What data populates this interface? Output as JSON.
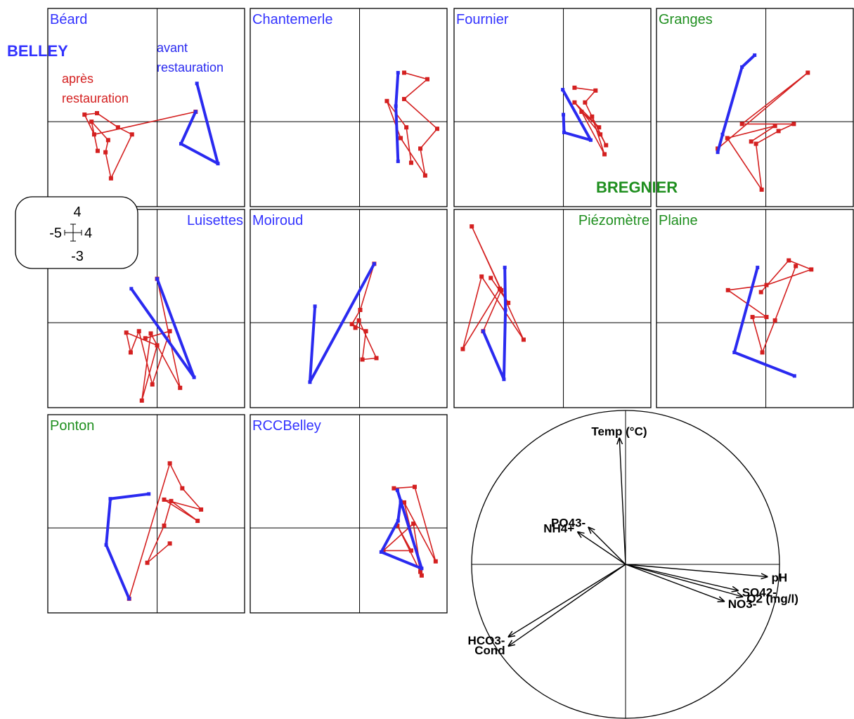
{
  "chart_data": [
    {
      "type": "trajectories",
      "xlim": [
        -5,
        4
      ],
      "ylim": [
        -3,
        4
      ],
      "series": [
        {
          "name": "avant restauration",
          "color": "#2a2af0"
        },
        {
          "name": "après restauration",
          "color": "#d42020"
        }
      ],
      "groups": [
        {
          "name": "BELLEY",
          "color": "#3333ff"
        },
        {
          "name": "BREGNIER",
          "color": "#1f8f1f"
        }
      ],
      "panels": [
        {
          "title": "Béard",
          "group": "BELLEY",
          "tracks": [
            {
              "x": [
                1.82,
                2.78,
                1.09,
                1.76
              ],
              "y": [
                1.35,
                -1.48,
                -0.78,
                0.35
              ]
            },
            {
              "x": [
                1.76,
                -2.88,
                -3.32,
                -2.75,
                -1.79,
                -1.15,
                -2.11,
                -2.36,
                -2.24,
                -3.0,
                -2.72
              ],
              "y": [
                0.35,
                -0.45,
                0.25,
                0.3,
                -0.2,
                -0.45,
                -2.0,
                -1.08,
                -0.65,
                0,
                -1.03
              ]
            }
          ]
        },
        {
          "title": "Chantemerle",
          "group": "BELLEY",
          "tracks": [
            {
              "x": [
                1.76,
                1.66,
                1.76
              ],
              "y": [
                1.73,
                0.55,
                -1.4
              ]
            },
            {
              "x": [
                2.04,
                3.1,
                2.04,
                3.55,
                2.78,
                3.0,
                1.88,
                1.25,
                2.14,
                2.36
              ],
              "y": [
                1.73,
                1.5,
                0.8,
                -0.25,
                -0.95,
                -1.9,
                -0.58,
                0.73,
                -0.2,
                -1.45
              ]
            }
          ]
        },
        {
          "title": "Fournier",
          "group": "BELLEY",
          "tracks": [
            {
              "x": [
                -0.03,
                1.25,
                0.03,
                0
              ],
              "y": [
                1.13,
                -0.65,
                -0.38,
                0.25
              ]
            },
            {
              "x": [
                0.51,
                1.47,
                0.99,
                1.95,
                1.69,
                0.51,
                1.63,
                0.83,
                1.88,
                1.31
              ],
              "y": [
                1.2,
                1.1,
                0.68,
                -0.83,
                -0.45,
                0.68,
                -0.2,
                0.35,
                -1.15,
                0.18
              ]
            }
          ]
        },
        {
          "title": "Granges",
          "group": "BREGNIER",
          "tracks": [
            {
              "x": [
                -0.51,
                -1.09,
                -1.98,
                -2.2
              ],
              "y": [
                2.35,
                1.93,
                -0.45,
                -1.08
              ]
            },
            {
              "x": [
                -2.2,
                1.92,
                -1.09,
                1.28,
                0.58,
                -0.45,
                -0.19,
                -1.76,
                0.42,
                -0.67
              ],
              "y": [
                -0.95,
                1.73,
                -0.08,
                -0.08,
                -0.33,
                -0.78,
                -2.4,
                -0.58,
                -0.15,
                -0.7
              ]
            }
          ]
        },
        {
          "title": "Luisettes",
          "group": "BELLEY",
          "tracks": [
            {
              "x": [
                -1.18,
                1.69,
                0
              ],
              "y": [
                1.2,
                -1.93,
                1.55
              ]
            },
            {
              "x": [
                0,
                1.05,
                -0.29,
                -0.7,
                0,
                -1.41,
                -1.21,
                -0.83,
                -0.22,
                0.58,
                -0.54
              ],
              "y": [
                1.55,
                -2.3,
                -0.38,
                -2.75,
                -0.8,
                -0.35,
                -1.05,
                -0.3,
                -2.18,
                -0.3,
                -0.55
              ]
            }
          ]
        },
        {
          "title": "Moiroud",
          "group": "BELLEY",
          "tracks": [
            {
              "x": [
                -2.04,
                -2.27,
                0.67
              ],
              "y": [
                0.58,
                -2.1,
                2.08
              ]
            },
            {
              "x": [
                0.67,
                0.03,
                -0.35,
                0.29,
                0.13,
                0.77,
                -0.03,
                -0.19
              ],
              "y": [
                2.08,
                0.45,
                -0.05,
                -0.3,
                -1.3,
                -1.25,
                0.08,
                -0.18
              ]
            }
          ]
        },
        {
          "title": "Piézomètre",
          "group": "BREGNIER",
          "tracks": [
            {
              "x": [
                -2.68,
                -2.65,
                -2.72,
                -3.67
              ],
              "y": [
                1.95,
                0.45,
                -2.0,
                -0.3
              ]
            },
            {
              "x": [
                -3.67,
                -2.84,
                -4.19,
                -1.82,
                -3.74,
                -4.6,
                -2.91,
                -2.52,
                -3.32
              ],
              "y": [
                -0.3,
                1.15,
                3.4,
                -0.6,
                1.63,
                -0.93,
                1.2,
                0.7,
                1.58
              ]
            }
          ]
        },
        {
          "title": "Plaine",
          "group": "BREGNIER",
          "tracks": [
            {
              "x": [
                -0.38,
                -1.44,
                1.31
              ],
              "y": [
                1.95,
                -1.05,
                -1.88
              ]
            },
            {
              "x": [
                -0.22,
                1.05,
                2.08,
                0.03,
                -1.73,
                0.03,
                -0.61,
                -0.16,
                0.42,
                1.37
              ],
              "y": [
                1.08,
                2.2,
                1.88,
                1.33,
                1.15,
                0.2,
                0.2,
                -1.05,
                0.08,
                2.0
              ]
            }
          ]
        },
        {
          "title": "Ponton",
          "group": "BREGNIER",
          "tracks": [
            {
              "x": [
                -0.38,
                -2.14,
                -2.33,
                -1.28
              ],
              "y": [
                1.2,
                1.03,
                -0.6,
                -2.5
              ]
            },
            {
              "x": [
                -1.28,
                0.58,
                1.15,
                2.01,
                0.32,
                1.85,
                0.64,
                0.32,
                -0.45,
                0.58
              ],
              "y": [
                -2.5,
                2.28,
                1.4,
                0.65,
                1.0,
                0.25,
                0.95,
                0.08,
                -1.23,
                -0.55
              ]
            }
          ]
        },
        {
          "title": "RCCBelley",
          "group": "BELLEY",
          "tracks": [
            {
              "x": [
                1.73,
                2.84,
                0.99,
                1.76,
                1.88
              ],
              "y": [
                1.33,
                -1.43,
                -0.85,
                0.25,
                0.95
              ]
            },
            {
              "x": [
                1.57,
                2.52,
                3.48,
                2.04,
                2.84,
                2.46,
                1.09,
                2.36,
                1.73,
                2.78
              ],
              "y": [
                1.4,
                1.45,
                -1.18,
                0.9,
                -1.68,
                0.15,
                -0.8,
                -0.8,
                0.08,
                -1.55
              ]
            }
          ]
        }
      ]
    },
    {
      "type": "correlation-circle",
      "xlim": [
        -1,
        1
      ],
      "ylim": [
        -1,
        1
      ],
      "color": "#000000",
      "vectors": {
        "labels": [
          "Temp (°C)",
          "PO43-",
          "NH4+",
          "pH",
          "SO42-",
          "O2 (mg/l)",
          "NO3-",
          "HCO3-",
          "Cond"
        ],
        "x": [
          -0.04,
          -0.24,
          -0.31,
          0.92,
          0.73,
          0.76,
          0.64,
          -0.76,
          -0.76
        ],
        "y": [
          0.82,
          0.24,
          0.21,
          -0.08,
          -0.17,
          -0.21,
          -0.24,
          -0.47,
          -0.53
        ]
      }
    }
  ]
}
